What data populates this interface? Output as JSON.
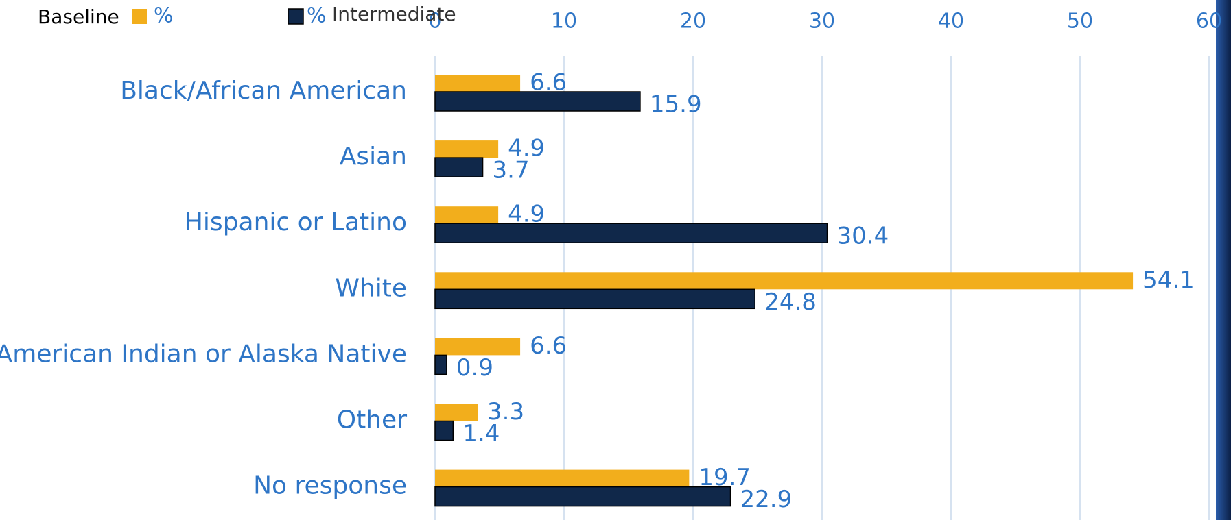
{
  "chart_data": {
    "type": "hbar",
    "categories": [
      "Black/African American",
      "Asian",
      "Hispanic or Latino",
      "White",
      "American Indian or Alaska Native",
      "Other",
      "No response"
    ],
    "series": [
      {
        "name": "%",
        "label": "Baseline",
        "color": "#f2ae1c",
        "values": [
          6.6,
          4.9,
          4.9,
          54.1,
          6.6,
          3.3,
          19.7
        ]
      },
      {
        "name": "%",
        "label": "Intermediate",
        "color": "#10284a",
        "values": [
          15.9,
          3.7,
          30.4,
          24.8,
          0.9,
          1.4,
          22.9
        ]
      }
    ],
    "xlim": [
      0,
      60
    ],
    "xticks": [
      0,
      10,
      20,
      30,
      40,
      50,
      60
    ],
    "grid": true
  }
}
